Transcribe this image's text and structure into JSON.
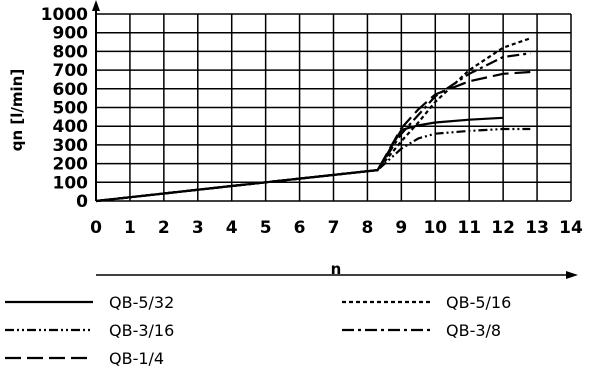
{
  "chart_data": {
    "type": "line",
    "xlabel": "n",
    "ylabel": "qn [l/min]",
    "xlim": [
      0,
      14
    ],
    "ylim": [
      0,
      1000
    ],
    "x_ticks": [
      "0",
      "1",
      "2",
      "3",
      "4",
      "5",
      "6",
      "7",
      "8",
      "9",
      "10",
      "11",
      "12",
      "13",
      "14"
    ],
    "y_ticks": [
      "0",
      "100",
      "200",
      "300",
      "400",
      "500",
      "600",
      "700",
      "800",
      "900",
      "1000"
    ],
    "grid": true,
    "legend_position": "bottom",
    "series": [
      {
        "name": "QB-5/32",
        "dash": "solid",
        "points": [
          [
            0,
            0
          ],
          [
            2,
            40
          ],
          [
            4,
            80
          ],
          [
            6,
            120
          ],
          [
            8.3,
            165
          ],
          [
            9,
            380
          ],
          [
            9.5,
            405
          ],
          [
            10,
            420
          ],
          [
            11,
            435
          ],
          [
            12,
            445
          ]
        ]
      },
      {
        "name": "QB-5/16",
        "dash": "dotted",
        "points": [
          [
            0,
            0
          ],
          [
            2,
            40
          ],
          [
            4,
            80
          ],
          [
            6,
            120
          ],
          [
            8.3,
            165
          ],
          [
            9,
            320
          ],
          [
            9.5,
            420
          ],
          [
            10,
            530
          ],
          [
            11,
            700
          ],
          [
            12,
            820
          ],
          [
            12.8,
            870
          ]
        ]
      },
      {
        "name": "QB-3/16",
        "dash": "dash-dot-dot",
        "points": [
          [
            0,
            0
          ],
          [
            2,
            40
          ],
          [
            4,
            80
          ],
          [
            6,
            120
          ],
          [
            8.3,
            165
          ],
          [
            9,
            280
          ],
          [
            9.5,
            335
          ],
          [
            10,
            360
          ],
          [
            11,
            375
          ],
          [
            12,
            385
          ],
          [
            12.8,
            385
          ]
        ]
      },
      {
        "name": "QB-3/8",
        "dash": "dash-dot",
        "points": [
          [
            0,
            0
          ],
          [
            2,
            40
          ],
          [
            4,
            80
          ],
          [
            6,
            120
          ],
          [
            8.3,
            165
          ],
          [
            9,
            360
          ],
          [
            9.5,
            460
          ],
          [
            10,
            560
          ],
          [
            11,
            680
          ],
          [
            12,
            770
          ],
          [
            12.8,
            790
          ]
        ]
      },
      {
        "name": "QB-1/4",
        "dash": "long-dash",
        "points": [
          [
            0,
            0
          ],
          [
            2,
            40
          ],
          [
            4,
            80
          ],
          [
            6,
            120
          ],
          [
            8.3,
            165
          ],
          [
            9,
            390
          ],
          [
            9.5,
            490
          ],
          [
            10,
            570
          ],
          [
            11,
            640
          ],
          [
            12,
            680
          ],
          [
            12.8,
            690
          ]
        ]
      }
    ]
  }
}
